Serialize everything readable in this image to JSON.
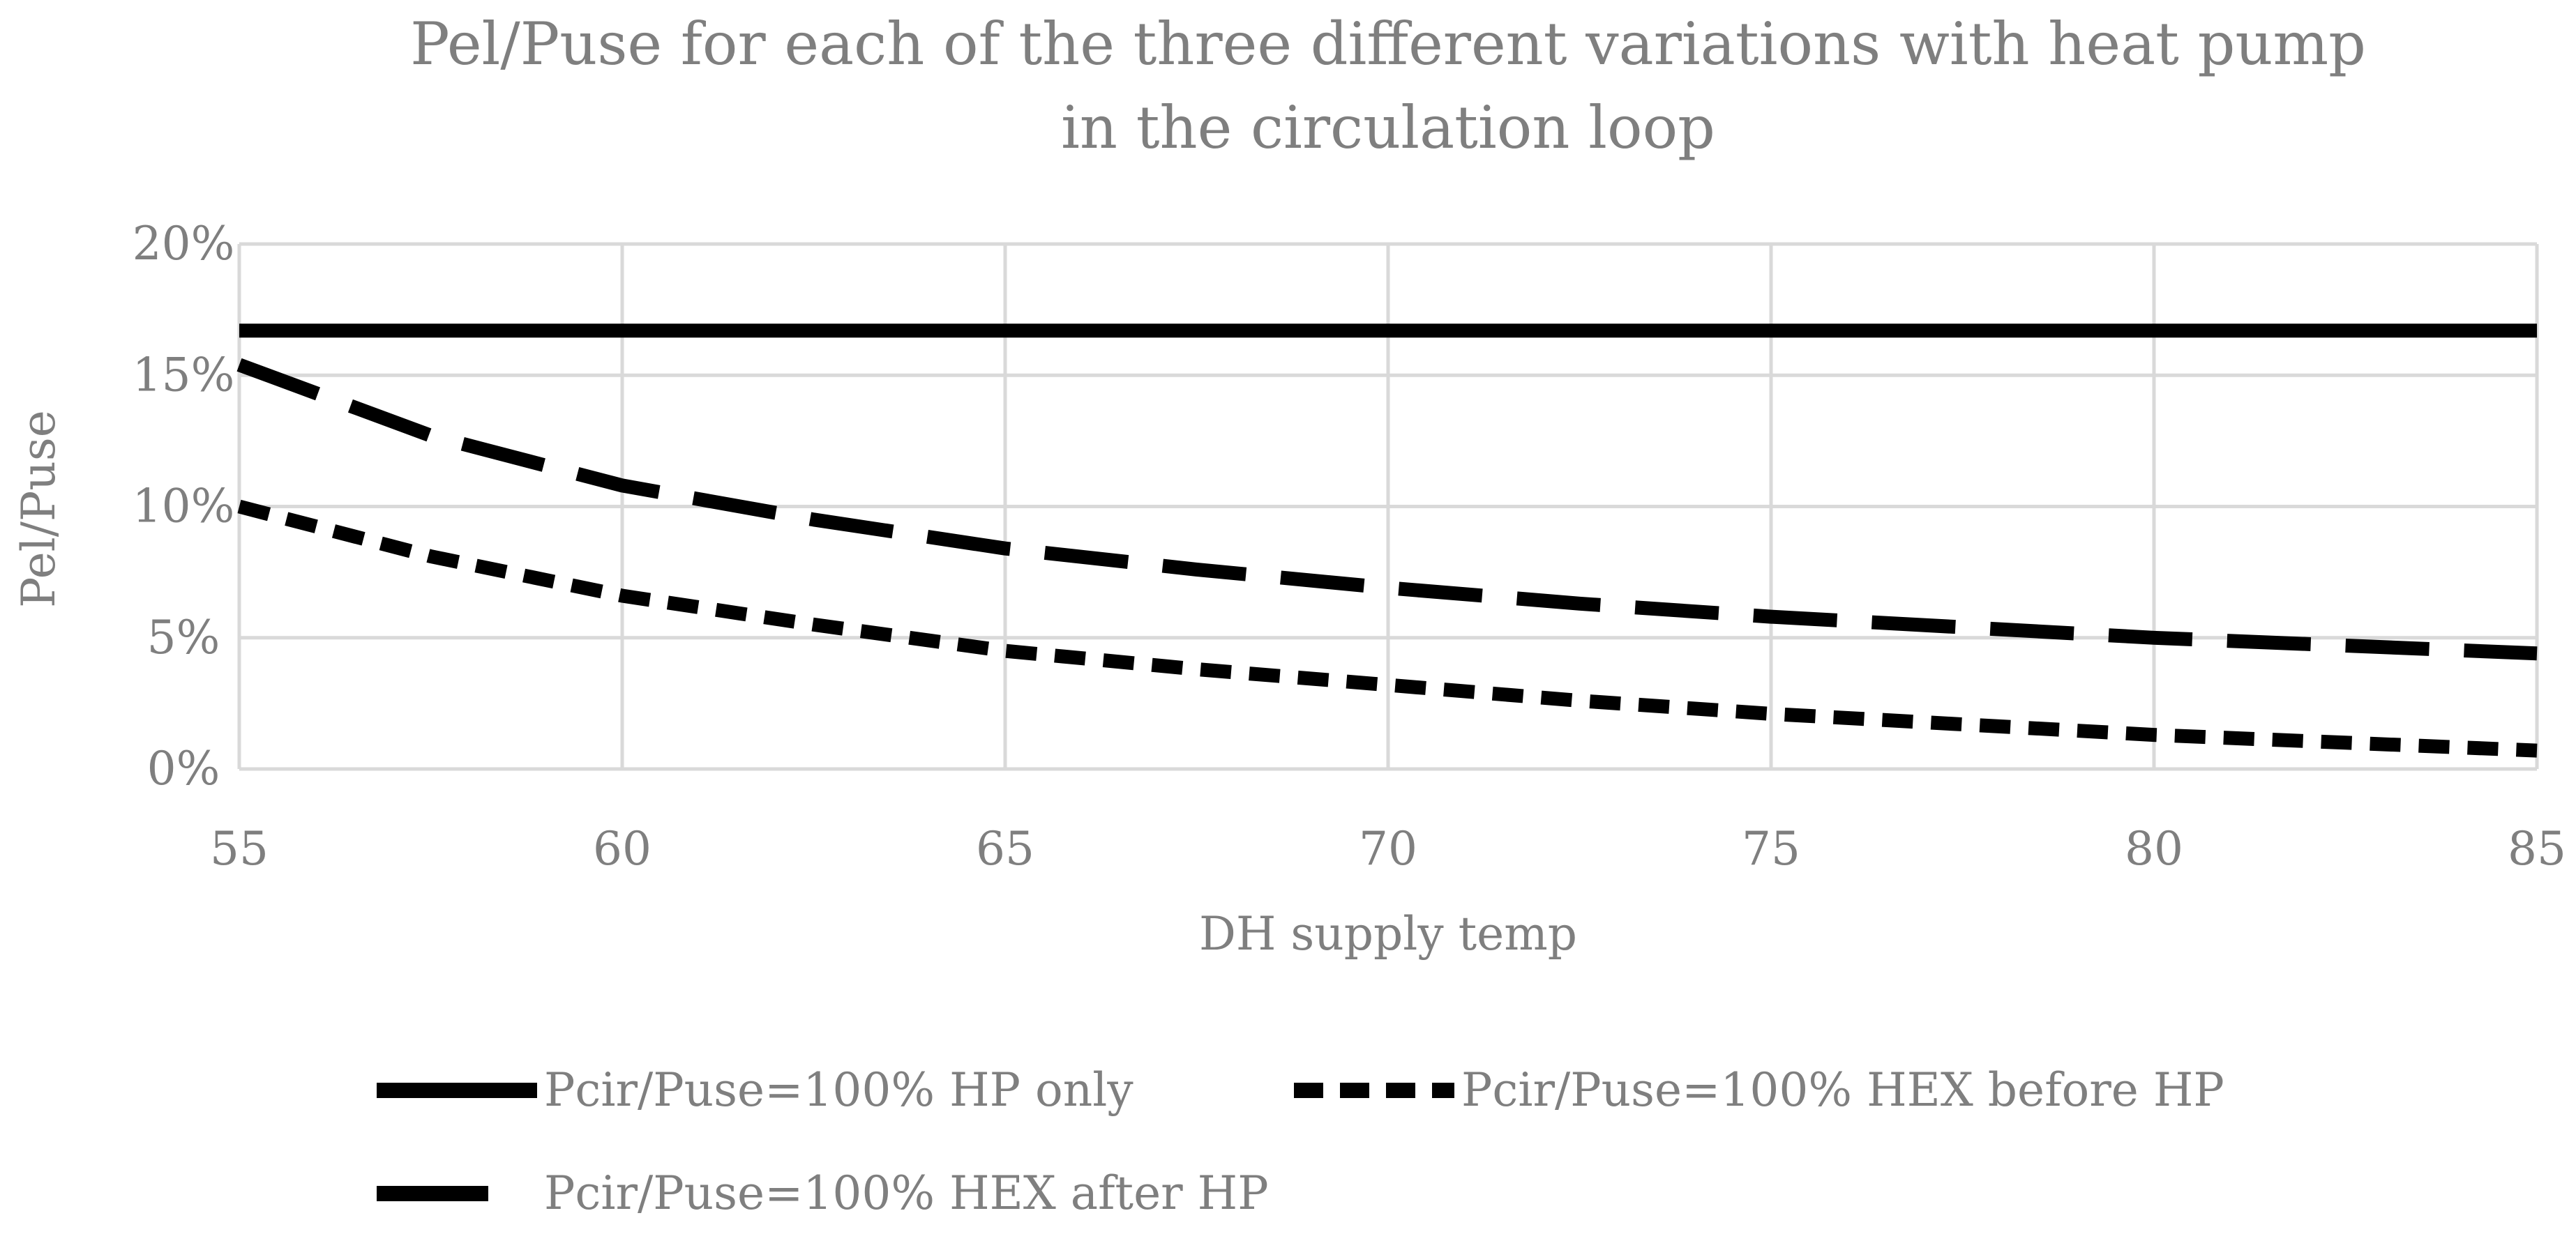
{
  "chart_data": {
    "type": "line",
    "title_lines": [
      "Pel/Puse for each of the three different variations with heat pump",
      "in the circulation loop"
    ],
    "xlabel": "DH supply temp",
    "ylabel": "Pel/Puse",
    "xlim": [
      55,
      85
    ],
    "ylim": [
      0,
      20
    ],
    "x_ticks": [
      55,
      60,
      65,
      70,
      75,
      80,
      85
    ],
    "y_ticks": [
      0,
      5,
      10,
      15,
      20
    ],
    "y_tick_labels": [
      "0%",
      "5%",
      "10%",
      "15%",
      "20%"
    ],
    "grid": true,
    "legend_position": "bottom",
    "x": [
      55,
      57.5,
      60,
      62.5,
      65,
      67.5,
      70,
      72.5,
      75,
      77.5,
      80,
      82.5,
      85
    ],
    "series": [
      {
        "name": "Pcir/Puse=100% HP only",
        "style": "solid",
        "color": "#000000",
        "values": [
          16.7,
          16.7,
          16.7,
          16.7,
          16.7,
          16.7,
          16.7,
          16.7,
          16.7,
          16.7,
          16.7,
          16.7,
          16.7
        ]
      },
      {
        "name": "Pcir/Puse=100% HEX before HP",
        "style": "short-dash",
        "color": "#000000",
        "values": [
          10.0,
          8.1,
          6.6,
          5.5,
          4.5,
          3.8,
          3.2,
          2.6,
          2.1,
          1.7,
          1.3,
          1.0,
          0.7
        ]
      },
      {
        "name": "Pcir/Puse=100% HEX after HP",
        "style": "long-dash",
        "color": "#000000",
        "values": [
          15.4,
          12.7,
          10.8,
          9.5,
          8.4,
          7.6,
          6.9,
          6.3,
          5.8,
          5.4,
          5.0,
          4.7,
          4.4
        ]
      }
    ],
    "legend_order": [
      0,
      1,
      2
    ]
  }
}
